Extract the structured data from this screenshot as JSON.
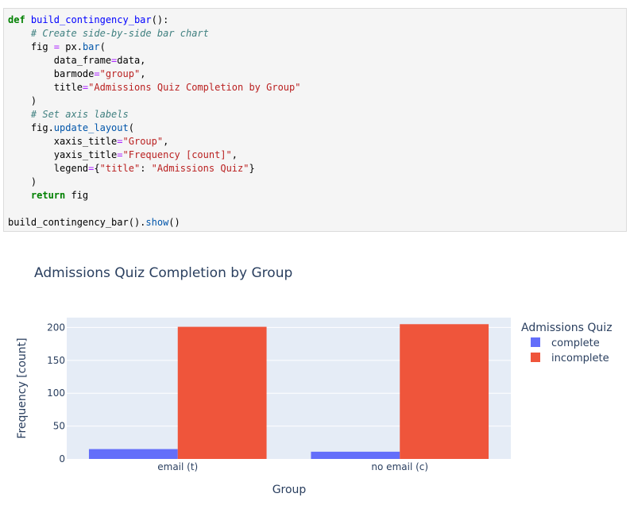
{
  "code": {
    "lines": [
      [
        [
          "kw",
          "def "
        ],
        [
          "fn",
          "build_contingency_bar"
        ],
        [
          "",
          "():"
        ]
      ],
      [
        [
          "cm",
          "    # Create side-by-side bar chart"
        ]
      ],
      [
        [
          "",
          "    fig "
        ],
        [
          "op",
          "="
        ],
        [
          "",
          " px."
        ],
        [
          "at",
          "bar"
        ],
        [
          "",
          "("
        ]
      ],
      [
        [
          "",
          "        data_frame"
        ],
        [
          "op",
          "="
        ],
        [
          "",
          "data,"
        ]
      ],
      [
        [
          "",
          "        barmode"
        ],
        [
          "op",
          "="
        ],
        [
          "st",
          "\"group\""
        ],
        [
          "",
          ","
        ]
      ],
      [
        [
          "",
          "        title"
        ],
        [
          "op",
          "="
        ],
        [
          "st",
          "\"Admissions Quiz Completion by Group\""
        ]
      ],
      [
        [
          "",
          "    )"
        ]
      ],
      [
        [
          "cm",
          "    # Set axis labels"
        ]
      ],
      [
        [
          "",
          "    fig."
        ],
        [
          "at",
          "update_layout"
        ],
        [
          "",
          "("
        ]
      ],
      [
        [
          "",
          "        xaxis_title"
        ],
        [
          "op",
          "="
        ],
        [
          "st",
          "\"Group\""
        ],
        [
          "",
          ","
        ]
      ],
      [
        [
          "",
          "        yaxis_title"
        ],
        [
          "op",
          "="
        ],
        [
          "st",
          "\"Frequency [count]\""
        ],
        [
          "",
          ","
        ]
      ],
      [
        [
          "",
          "        legend"
        ],
        [
          "op",
          "="
        ],
        [
          "",
          "{"
        ],
        [
          "st",
          "\"title\""
        ],
        [
          "",
          ": "
        ],
        [
          "st",
          "\"Admissions Quiz\""
        ],
        [
          "",
          "}"
        ]
      ],
      [
        [
          "",
          "    )"
        ]
      ],
      [
        [
          "kw",
          "    return"
        ],
        [
          "",
          " fig"
        ]
      ],
      [
        [
          "",
          ""
        ]
      ],
      [
        [
          "",
          "build_contingency_bar()."
        ],
        [
          "at",
          "show"
        ],
        [
          "",
          "()"
        ]
      ]
    ]
  },
  "chart_data": {
    "type": "bar",
    "title": "Admissions Quiz Completion by Group",
    "xlabel": "Group",
    "ylabel": "Frequency [count]",
    "categories": [
      "email (t)",
      "no email (c)"
    ],
    "series": [
      {
        "name": "complete",
        "values": [
          15,
          11
        ],
        "color": "#636efa"
      },
      {
        "name": "incomplete",
        "values": [
          201,
          205
        ],
        "color": "#ef553b"
      }
    ],
    "ylim": [
      0,
      215
    ],
    "yticks": [
      0,
      50,
      100,
      150,
      200
    ],
    "legend_title": "Admissions Quiz",
    "legend_position": "right",
    "grid": true,
    "plot_bg": "#e5ecf6",
    "barmode": "group"
  }
}
